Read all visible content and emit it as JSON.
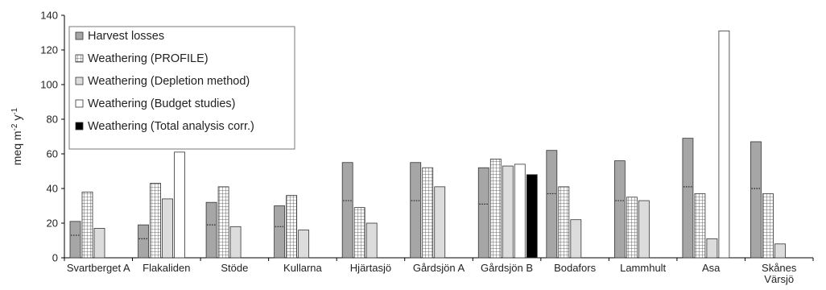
{
  "chart_data": {
    "type": "bar",
    "title": "",
    "xlabel": "",
    "ylabel": "meq m-2 y-1",
    "ylabel_parts": {
      "base": "meq m",
      "exp1": "-2",
      "mid": " y",
      "exp2": "-1"
    },
    "ylim": [
      0,
      140
    ],
    "yticks": [
      0,
      20,
      40,
      60,
      80,
      100,
      120,
      140
    ],
    "grid": false,
    "legend_position": "top-left",
    "categories": [
      "Svartberget A",
      "Flakaliden",
      "Stöde",
      "Kullarna",
      "Hjärtasjö",
      "Gårdsjön A",
      "Gårdsjön B",
      "Bodafors",
      "Lammhult",
      "Asa",
      "Skånes Värsjö"
    ],
    "category_lines": [
      [
        "Svartberget A"
      ],
      [
        "Flakaliden"
      ],
      [
        "Stöde"
      ],
      [
        "Kullarna"
      ],
      [
        "Hjärtasjö"
      ],
      [
        "Gårdsjön A"
      ],
      [
        "Gårdsjön B"
      ],
      [
        "Bodafors"
      ],
      [
        "Lammhult"
      ],
      [
        "Asa"
      ],
      [
        "Skånes",
        "Värsjö"
      ]
    ],
    "series": [
      {
        "name": "Harvest losses",
        "color": "#a6a6a6",
        "pattern": "solid",
        "values": [
          21,
          19,
          32,
          30,
          55,
          55,
          52,
          62,
          56,
          69,
          67
        ],
        "dotted_line_values": [
          13,
          11,
          19,
          18,
          33,
          33,
          31,
          37,
          33,
          41,
          40
        ]
      },
      {
        "name": "Weathering (PROFILE)",
        "color": "#ffffff",
        "pattern": "grid",
        "values": [
          38,
          43,
          41,
          36,
          29,
          52,
          57,
          41,
          35,
          37,
          37
        ]
      },
      {
        "name": "Weathering (Depletion method)",
        "color": "#dcdcdc",
        "pattern": "solid",
        "values": [
          17,
          34,
          18,
          16,
          20,
          41,
          53,
          22,
          33,
          11,
          8
        ]
      },
      {
        "name": "Weathering (Budget studies)",
        "color": "#ffffff",
        "pattern": "outline",
        "values": [
          null,
          61,
          null,
          null,
          null,
          null,
          54,
          null,
          null,
          131,
          null
        ]
      },
      {
        "name": "Weathering (Total analysis corr.)",
        "color": "#000000",
        "pattern": "solid",
        "values": [
          null,
          null,
          null,
          null,
          null,
          null,
          48,
          null,
          null,
          null,
          null
        ]
      }
    ]
  }
}
